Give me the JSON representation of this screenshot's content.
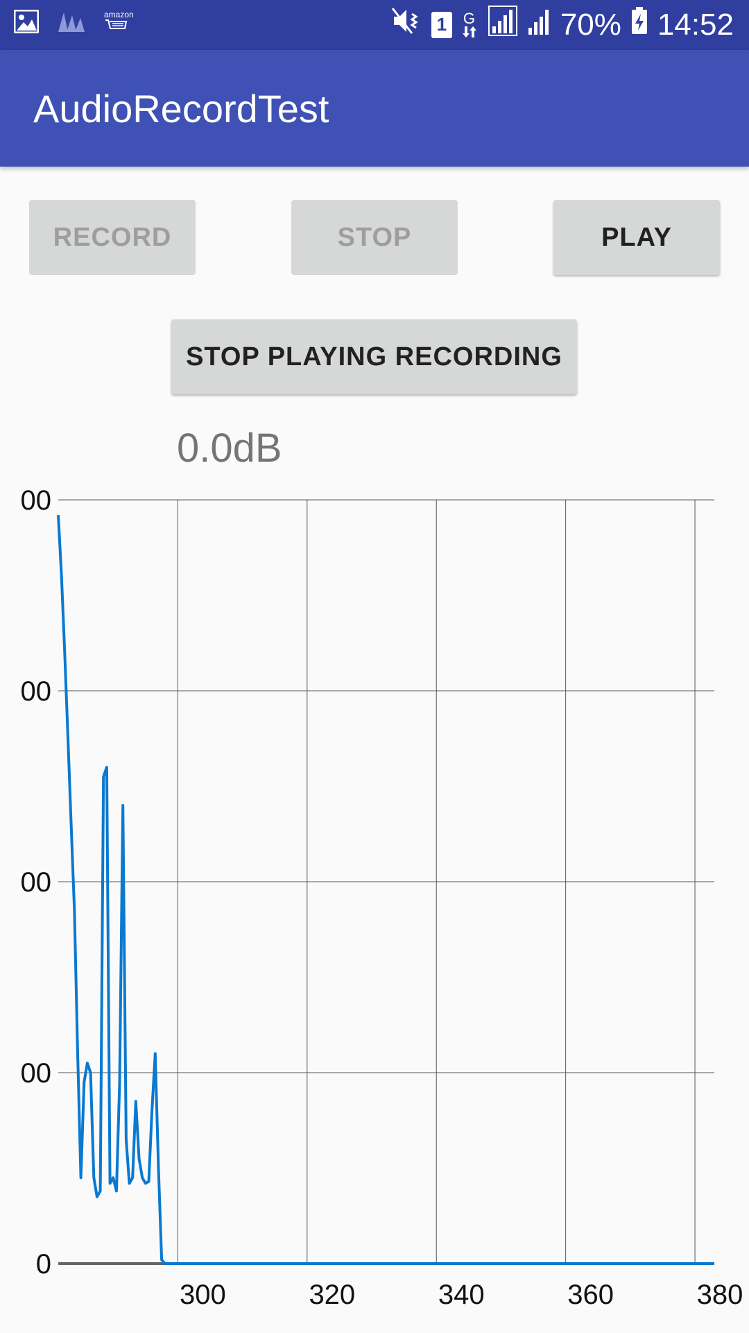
{
  "status_bar": {
    "left_icons": [
      "image-icon",
      "music-app-icon",
      "amazon-shopping-icon"
    ],
    "amazon_label": "amazon",
    "right_icons": [
      "mute-vibrate-icon",
      "sim-1-icon",
      "data-g-icon",
      "signal-icon",
      "signal-2-icon",
      "battery-charging-icon"
    ],
    "sim_number": "1",
    "network_type": "G",
    "battery": "70%",
    "time": "14:52"
  },
  "app_bar": {
    "title": "AudioRecordTest"
  },
  "buttons": {
    "record": "RECORD",
    "stop": "STOP",
    "play": "PLAY",
    "stop_playing": "STOP PLAYING RECORDING"
  },
  "level": {
    "text": "0.0dB"
  },
  "colors": {
    "status_bar": "#303f9f",
    "app_bar": "#3f51b5",
    "line": "#0a79d0",
    "button": "#d6d7d7"
  },
  "chart_data": {
    "type": "line",
    "x_ticks": [
      "300",
      "320",
      "340",
      "360",
      "380"
    ],
    "x_tick_values": [
      300,
      320,
      340,
      360,
      380
    ],
    "y_ticks": [
      "0",
      "00",
      "00",
      "00",
      "00"
    ],
    "y_tick_values": [
      0,
      1,
      2,
      3,
      4
    ],
    "xlim": [
      281.5,
      383
    ],
    "ylim": [
      0,
      4
    ],
    "grid": true,
    "series": [
      {
        "x": [
          281.5,
          282,
          282.5,
          283,
          283.5,
          284,
          284.5,
          285,
          285.5,
          286,
          286.5,
          287,
          287.5,
          288,
          288.5,
          289,
          289.5,
          290,
          290.5,
          291,
          291.5,
          292,
          292.5,
          293,
          293.5,
          294,
          294.5,
          295,
          295.5,
          296,
          296.5,
          297,
          297.5,
          298,
          298.5,
          299,
          299.5,
          300,
          300.5,
          301,
          301.5,
          302,
          302.5,
          303,
          303.5,
          304,
          304.5,
          305,
          305.5,
          330,
          330.5,
          331,
          331.5,
          332,
          332.5,
          333,
          333.5,
          334,
          334.5,
          335,
          335.5,
          336,
          336.5,
          337,
          337.5,
          338,
          338.5,
          339,
          339.5,
          340,
          340.5,
          341,
          341.5,
          342,
          342.5,
          343,
          343.5,
          344,
          344.5,
          345,
          345.5,
          346,
          346.5,
          347,
          347.5,
          348,
          348.5,
          349,
          349.5,
          350,
          350.5,
          351,
          351.5,
          352,
          352.5,
          353,
          353.5,
          354,
          354.5,
          355,
          355.5,
          356,
          356.5,
          357,
          357.5,
          358,
          358.5,
          359,
          359.5,
          360,
          360.5,
          361,
          361.5,
          362,
          362.5,
          363,
          363.5,
          364,
          364.5,
          365,
          365.5,
          366,
          383
        ],
        "y": [
          3.92,
          3.6,
          3.2,
          2.75,
          2.3,
          1.85,
          1.1,
          0.45,
          0.95,
          1.05,
          1.0,
          0.45,
          0.35,
          0.38,
          2.55,
          2.6,
          0.42,
          0.45,
          0.38,
          0.95,
          2.4,
          0.65,
          0.42,
          0.45,
          0.85,
          0.55,
          0.45,
          0.42,
          0.43,
          0.8,
          1.1,
          0.5,
          0.02,
          0.0,
          0.0,
          0.0,
          0.0,
          0.0,
          0.0,
          0.0,
          0.0,
          0.0,
          0.0,
          0.0,
          0.0,
          0.0,
          0.0,
          0.0,
          0.0,
          0.0,
          0.0,
          0.0,
          0.0,
          0.0,
          0.0,
          0.0,
          0.0,
          0.0,
          0.0,
          0.0,
          0.0,
          0.0,
          0.0,
          0.0,
          0.0,
          0.0,
          0.0,
          0.0,
          0.0,
          0.0,
          0.0,
          0.0,
          0.0,
          0.0,
          0.0,
          0.0,
          0.0,
          0.0,
          0.0,
          0.0,
          0.0,
          0.0,
          0.0,
          0.0,
          0.0,
          0.0,
          0.0,
          0.0,
          0.0,
          0.0,
          0.0,
          0.0,
          0.0,
          0.0,
          0.0,
          0.0,
          0.0,
          0.0,
          0.0,
          0.0,
          0.0,
          0.0,
          0.0,
          0.0,
          0.0,
          0.0,
          0.0,
          0.0,
          0.0,
          0.0,
          0.0,
          0.0,
          0.0,
          0.0,
          0.0,
          0.0,
          0.0,
          0.0,
          0.0,
          0.0,
          0.0,
          0.0,
          0.0
        ]
      }
    ]
  }
}
